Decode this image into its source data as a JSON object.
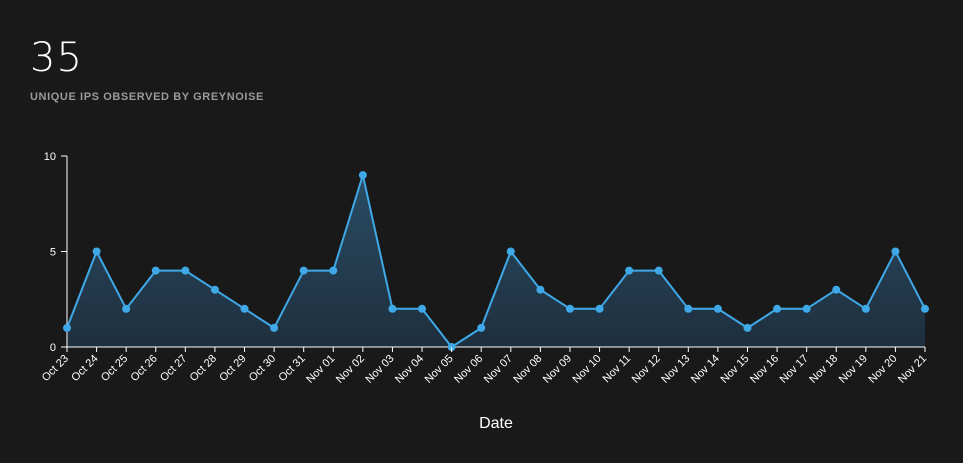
{
  "stat": {
    "value": "35",
    "label": "UNIQUE IPS OBSERVED BY GREYNOISE"
  },
  "colors": {
    "background": "#191919",
    "line": "#3fa9e8",
    "area_top": "#2a4c64",
    "area_bottom": "#1e2f3e",
    "axis": "#ffffff"
  },
  "chart_data": {
    "type": "area",
    "xlabel": "Date",
    "ylabel": "",
    "ylim": [
      0,
      10
    ],
    "yticks": [
      0,
      5,
      10
    ],
    "grid": false,
    "categories": [
      "Oct 23",
      "Oct 24",
      "Oct 25",
      "Oct 26",
      "Oct 27",
      "Oct 28",
      "Oct 29",
      "Oct 30",
      "Oct 31",
      "Nov 01",
      "Nov 02",
      "Nov 03",
      "Nov 04",
      "Nov 05",
      "Nov 06",
      "Nov 07",
      "Nov 08",
      "Nov 09",
      "Nov 10",
      "Nov 11",
      "Nov 12",
      "Nov 13",
      "Nov 14",
      "Nov 15",
      "Nov 16",
      "Nov 17",
      "Nov 18",
      "Nov 19",
      "Nov 20",
      "Nov 21"
    ],
    "values": [
      1,
      5,
      2,
      4,
      4,
      3,
      2,
      1,
      4,
      4,
      9,
      2,
      2,
      0,
      1,
      5,
      3,
      2,
      2,
      4,
      4,
      2,
      2,
      1,
      2,
      2,
      3,
      2,
      5,
      2
    ]
  }
}
